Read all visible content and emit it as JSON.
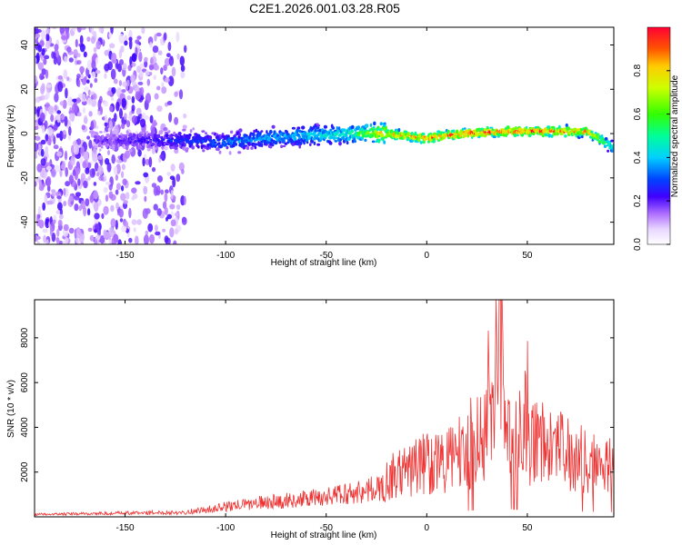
{
  "title": "C2E1.2026.001.03.28.R05",
  "chart_data": [
    {
      "type": "heatmap",
      "title": "C2E1.2026.001.03.28.R05",
      "xlabel": "Height of straight line (km)",
      "ylabel": "Frequency (Hz)",
      "xlim": [
        -195,
        93
      ],
      "ylim": [
        -50,
        48
      ],
      "xticks": [
        "-150",
        "-100",
        "-50",
        "0",
        "50"
      ],
      "xtick_values": [
        -150,
        -100,
        -50,
        0,
        50
      ],
      "yticks": [
        "-40",
        "-20",
        "0",
        "20",
        "40"
      ],
      "ytick_values": [
        -40,
        -20,
        0,
        20,
        40
      ],
      "signal_ridge": {
        "height_km": [
          -160,
          -140,
          -120,
          -100,
          -80,
          -60,
          -40,
          -20,
          0,
          20,
          40,
          60,
          80,
          92
        ],
        "frequency_hz": [
          -3,
          -3,
          -3,
          -4,
          -2,
          -1,
          0,
          0,
          -2,
          0,
          1,
          1,
          1,
          -6
        ],
        "peak_amplitude": [
          0.2,
          0.25,
          0.3,
          0.35,
          0.4,
          0.45,
          0.5,
          0.85,
          0.9,
          0.95,
          0.95,
          0.95,
          0.9,
          0.5
        ]
      },
      "noise_extent": {
        "height_km": [
          -195,
          -120
        ],
        "frequency_hz": [
          -50,
          48
        ]
      },
      "colorbar": {
        "label": "Normalized spectral amplitude",
        "ticks": [
          "0.0",
          "0.2",
          "0.4",
          "0.6",
          "0.8"
        ],
        "tick_values": [
          0.0,
          0.2,
          0.4,
          0.6,
          0.8
        ],
        "range": [
          0,
          1
        ]
      }
    },
    {
      "type": "line",
      "xlabel": "Height of straight line (km)",
      "ylabel": "SNR (10 * v/v)",
      "xlim": [
        -195,
        93
      ],
      "ylim": [
        0,
        9700
      ],
      "xticks": [
        "-150",
        "-100",
        "-50",
        "0",
        "50"
      ],
      "xtick_values": [
        -150,
        -100,
        -50,
        0,
        50
      ],
      "yticks": [
        "2000",
        "4000",
        "6000",
        "8000"
      ],
      "ytick_values": [
        2000,
        4000,
        6000,
        8000
      ],
      "series": [
        {
          "name": "SNR",
          "color": "#ee3333",
          "x": [
            -195,
            -180,
            -160,
            -140,
            -120,
            -110,
            -100,
            -90,
            -80,
            -70,
            -60,
            -50,
            -40,
            -30,
            -20,
            -10,
            0,
            10,
            20,
            25,
            30,
            36,
            40,
            50,
            60,
            70,
            80,
            93
          ],
          "y": [
            150,
            180,
            220,
            260,
            300,
            450,
            650,
            800,
            950,
            1050,
            1150,
            1300,
            1500,
            1700,
            1900,
            2300,
            2800,
            2800,
            3300,
            3800,
            4300,
            9700,
            4300,
            4000,
            3500,
            3200,
            2800,
            2700
          ]
        }
      ]
    }
  ]
}
